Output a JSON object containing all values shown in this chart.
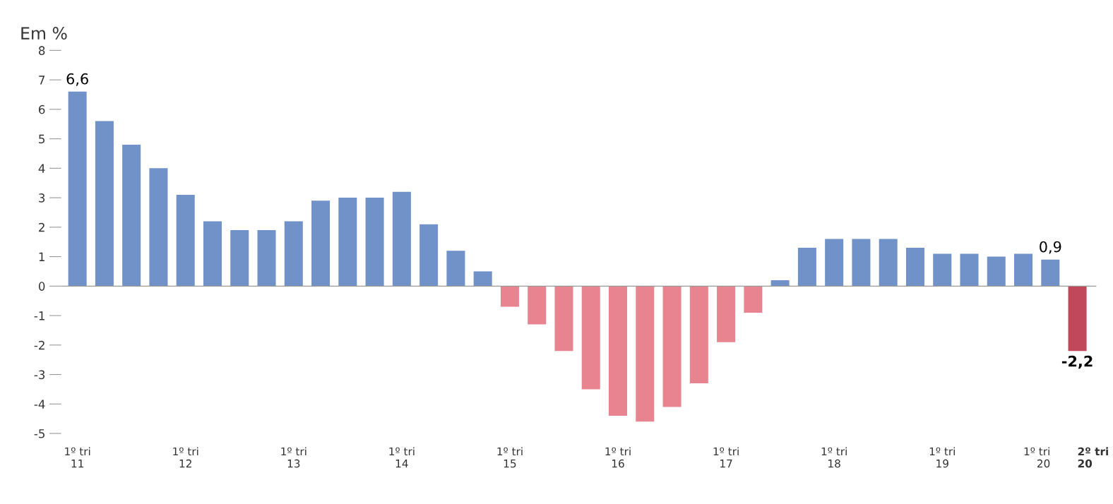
{
  "chart_data": {
    "type": "bar",
    "ylabel": "Em %",
    "categories": [
      "1º tri\n11",
      null,
      null,
      null,
      "1º tri\n12",
      null,
      null,
      null,
      "1º tri\n13",
      null,
      null,
      null,
      "1º tri\n14",
      null,
      null,
      null,
      "1º tri\n15",
      null,
      null,
      null,
      "1º tri\n16",
      null,
      null,
      null,
      "1º tri\n17",
      null,
      null,
      null,
      "1º tri\n18",
      null,
      null,
      null,
      "1º tri\n19",
      null,
      null,
      null,
      "1º tri\n20",
      "2º tri\n20"
    ],
    "values": [
      6.6,
      5.6,
      4.8,
      4.0,
      3.1,
      2.2,
      1.9,
      1.9,
      2.2,
      2.9,
      3.0,
      3.0,
      3.2,
      2.1,
      1.2,
      0.5,
      -0.7,
      -1.3,
      -2.2,
      -3.5,
      -4.4,
      -4.6,
      -4.1,
      -3.3,
      -1.9,
      -0.9,
      0.2,
      1.3,
      1.6,
      1.6,
      1.6,
      1.3,
      1.1,
      1.1,
      1.0,
      1.1,
      0.9,
      -2.2
    ],
    "colors": [
      "#7192c8",
      "#7192c8",
      "#7192c8",
      "#7192c8",
      "#7192c8",
      "#7192c8",
      "#7192c8",
      "#7192c8",
      "#7192c8",
      "#7192c8",
      "#7192c8",
      "#7192c8",
      "#7192c8",
      "#7192c8",
      "#7192c8",
      "#7192c8",
      "#e8848f",
      "#e8848f",
      "#e8848f",
      "#e8848f",
      "#e8848f",
      "#e8848f",
      "#e8848f",
      "#e8848f",
      "#e8848f",
      "#e8848f",
      "#7192c8",
      "#7192c8",
      "#7192c8",
      "#7192c8",
      "#7192c8",
      "#7192c8",
      "#7192c8",
      "#7192c8",
      "#7192c8",
      "#7192c8",
      "#7192c8",
      "#c0485a"
    ],
    "value_labels": [
      "6,6",
      null,
      null,
      null,
      null,
      null,
      null,
      null,
      null,
      null,
      null,
      null,
      null,
      null,
      null,
      null,
      null,
      null,
      null,
      null,
      null,
      null,
      null,
      null,
      null,
      null,
      null,
      null,
      null,
      null,
      null,
      null,
      null,
      null,
      null,
      null,
      "0,9",
      "-2,2"
    ],
    "ylim": [
      -5,
      8
    ],
    "yticks": [
      8,
      7,
      6,
      5,
      4,
      3,
      2,
      1,
      0,
      -1,
      -2,
      -3,
      -4,
      -5
    ],
    "grid": false,
    "legend": false,
    "ref_lines": [
      {
        "axis": "y",
        "value": 0,
        "color": "#999999"
      }
    ]
  }
}
